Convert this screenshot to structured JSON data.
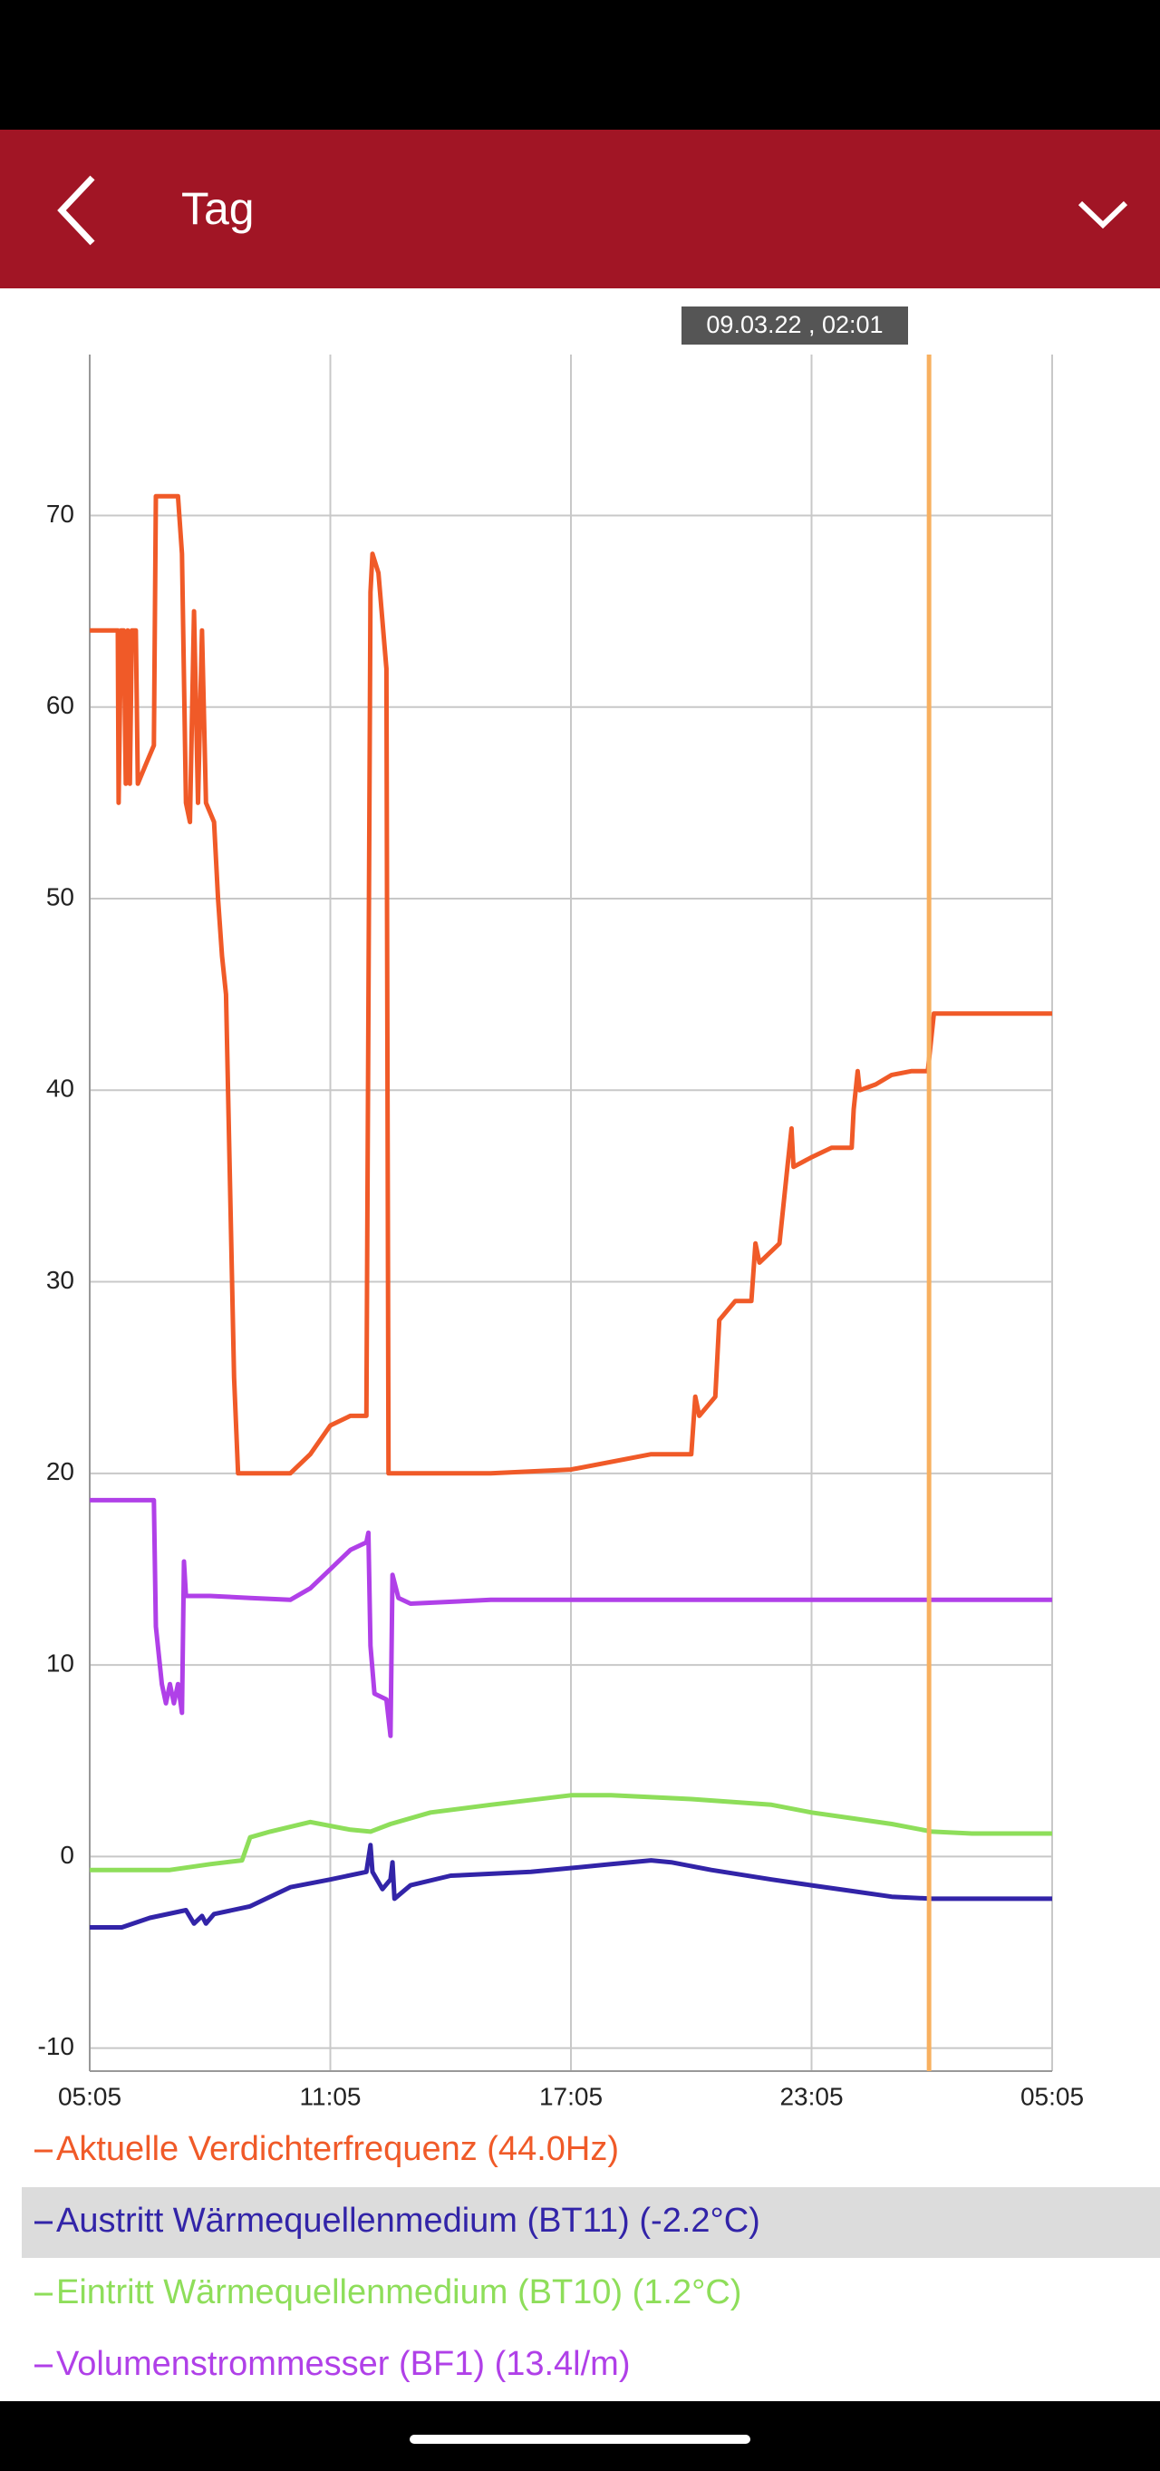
{
  "header": {
    "title": "Tag"
  },
  "chart_data": {
    "type": "line",
    "cursor": {
      "x": 20.93,
      "label": "09.03.22 , 02:01",
      "color": "#f8b060"
    },
    "xlim": [
      0,
      24
    ],
    "xticks": [
      {
        "value": 0,
        "label": "05:05"
      },
      {
        "value": 6,
        "label": "11:05"
      },
      {
        "value": 12,
        "label": "17:05"
      },
      {
        "value": 18,
        "label": "23:05"
      },
      {
        "value": 24,
        "label": "05:05"
      }
    ],
    "ylim": [
      -11.2,
      78.4
    ],
    "yticks": [
      -10,
      0,
      10,
      20,
      30,
      40,
      50,
      60,
      70
    ],
    "grid": true,
    "legend_selected": 1,
    "series": [
      {
        "name": "Aktuelle Verdichterfrequenz (44.0Hz)",
        "color": "#f05a28",
        "x": [
          0,
          0.7,
          0.72,
          0.78,
          0.85,
          0.9,
          0.95,
          1.0,
          1.05,
          1.15,
          1.2,
          1.4,
          1.6,
          1.65,
          2.2,
          2.3,
          2.4,
          2.5,
          2.6,
          2.7,
          2.8,
          2.9,
          3.1,
          3.2,
          3.3,
          3.4,
          3.6,
          3.7,
          5.0,
          5.5,
          6.0,
          6.5,
          6.9,
          7.0,
          7.05,
          7.2,
          7.4,
          7.45,
          10,
          12,
          14,
          15,
          15.1,
          15.2,
          15.6,
          15.7,
          16.1,
          16.5,
          16.6,
          16.7,
          17.2,
          17.4,
          17.5,
          17.55,
          18.0,
          18.5,
          19.0,
          19.05,
          19.15,
          19.2,
          19.6,
          20.0,
          20.5,
          20.9,
          21.05,
          24
        ],
        "values": [
          64,
          64,
          55,
          64,
          64,
          56,
          64,
          56,
          64,
          64,
          56,
          57,
          58,
          71,
          71,
          68,
          55,
          54,
          65,
          55,
          64,
          55,
          54,
          50,
          47,
          45,
          25,
          20,
          20,
          21,
          22.5,
          23,
          23,
          66,
          68,
          67,
          62,
          20,
          20,
          20.2,
          21,
          21,
          24,
          23,
          24,
          28,
          29,
          29,
          32,
          31,
          32,
          36,
          38,
          36,
          36.5,
          37,
          37,
          39,
          41,
          40,
          40.3,
          40.8,
          41,
          41,
          44,
          44
        ]
      },
      {
        "name": "Austritt Wärmequellenmedium (BT11) (-2.2°C)",
        "color": "#3224a8",
        "x": [
          0,
          0.8,
          1.5,
          2.4,
          2.6,
          2.8,
          2.9,
          3.1,
          4,
          4.5,
          5,
          6,
          6.9,
          7.0,
          7.05,
          7.3,
          7.5,
          7.55,
          7.6,
          8,
          9,
          11,
          13,
          14,
          14.5,
          15.5,
          17,
          18,
          19,
          20,
          21,
          24
        ],
        "values": [
          -3.7,
          -3.7,
          -3.2,
          -2.8,
          -3.5,
          -3.1,
          -3.5,
          -3,
          -2.6,
          -2.1,
          -1.6,
          -1.2,
          -0.8,
          0.6,
          -0.8,
          -1.7,
          -1.2,
          -0.3,
          -2.2,
          -1.5,
          -1,
          -0.8,
          -0.4,
          -0.2,
          -0.3,
          -0.7,
          -1.2,
          -1.5,
          -1.8,
          -2.1,
          -2.2,
          -2.2
        ]
      },
      {
        "name": "Eintritt Wärmequellenmedium (BT10) (1.2°C)",
        "color": "#8ede5a",
        "x": [
          0,
          2,
          3,
          3.8,
          4.0,
          4.5,
          5.5,
          6.5,
          7.0,
          7.5,
          8.5,
          10,
          12,
          13,
          15,
          17,
          18,
          19,
          20,
          21,
          22,
          24
        ],
        "values": [
          -0.7,
          -0.7,
          -0.4,
          -0.2,
          1,
          1.3,
          1.8,
          1.4,
          1.3,
          1.7,
          2.3,
          2.7,
          3.2,
          3.2,
          3,
          2.7,
          2.3,
          2,
          1.7,
          1.3,
          1.2,
          1.2
        ]
      },
      {
        "name": "Volumenstrommesser (BF1) (13.4l/m)",
        "color": "#b040e8",
        "x": [
          0,
          1.6,
          1.65,
          1.8,
          1.9,
          2.0,
          2.1,
          2.2,
          2.3,
          2.35,
          2.4,
          3,
          4,
          5,
          5.5,
          6,
          6.5,
          6.9,
          6.95,
          7.0,
          7.1,
          7.4,
          7.5,
          7.55,
          7.7,
          8.0,
          10,
          24
        ],
        "values": [
          18.6,
          18.6,
          12,
          9,
          8,
          9,
          8,
          9,
          7.5,
          15.4,
          13.6,
          13.6,
          13.5,
          13.4,
          14,
          15,
          16,
          16.4,
          16.9,
          11,
          8.5,
          8.2,
          6.3,
          14.7,
          13.5,
          13.2,
          13.4,
          13.4
        ]
      }
    ]
  }
}
